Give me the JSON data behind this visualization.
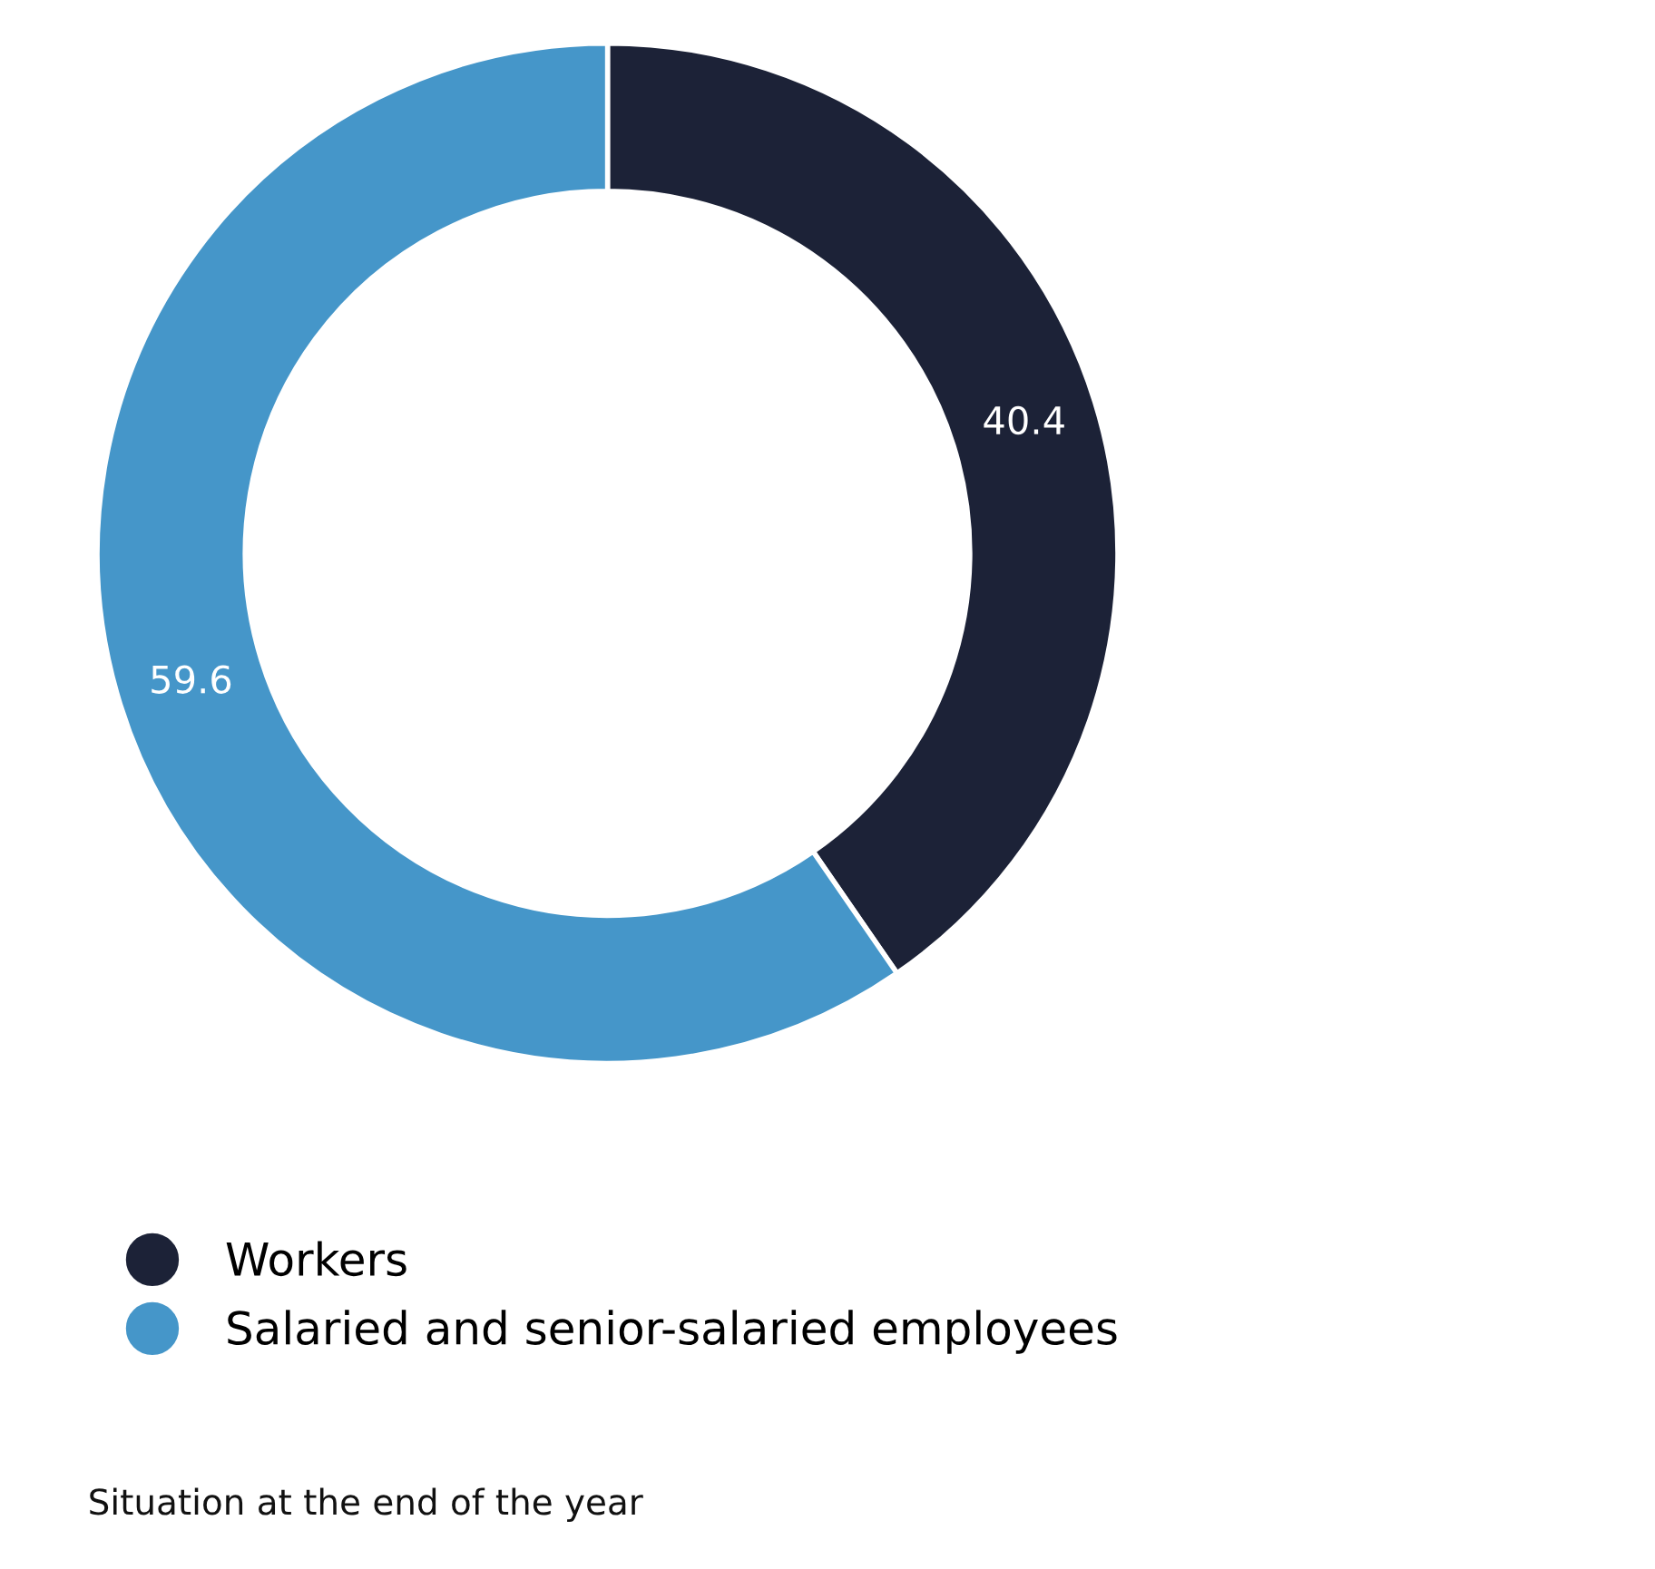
{
  "chart_data": {
    "type": "donut",
    "categories": [
      "Workers",
      "Salaried and senior-salaried employees"
    ],
    "values": [
      40.4,
      59.6
    ],
    "colors": [
      "#1c2237",
      "#4596c9"
    ],
    "data_labels": true,
    "legend": "bottom",
    "annotations": [
      "Situation at the end of the year"
    ]
  }
}
